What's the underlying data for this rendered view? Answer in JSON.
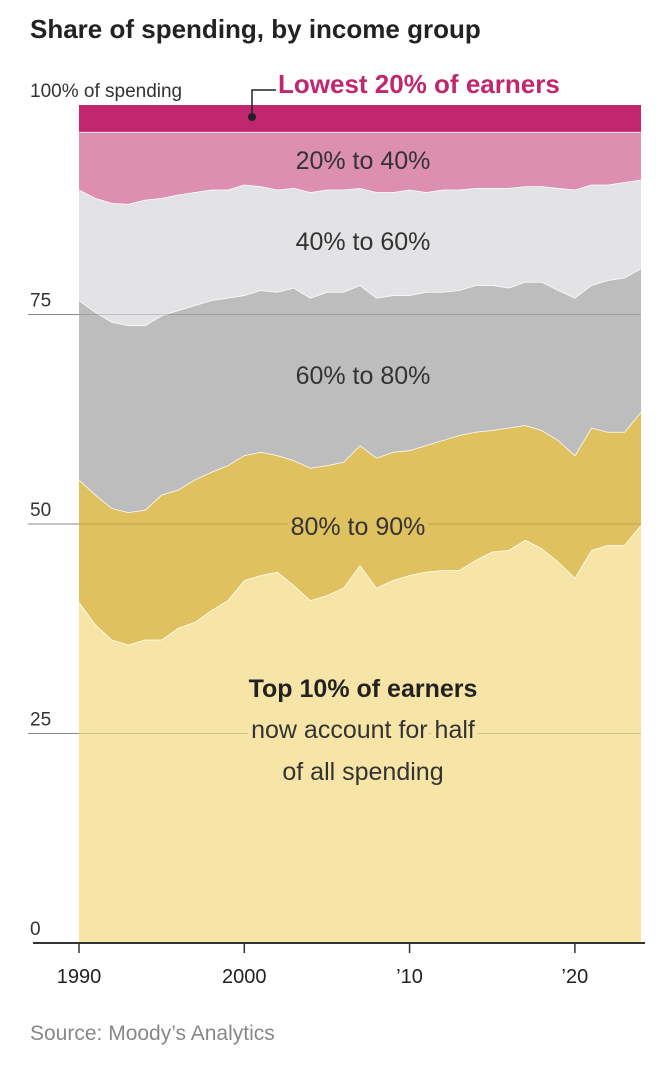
{
  "chart_data": {
    "type": "area",
    "title": "Share of spending, by income group",
    "source": "Source: Moody’s Analytics",
    "annotations": [
      "now account for half",
      "of all spending"
    ],
    "x": [
      1990,
      1991,
      1992,
      1993,
      1994,
      1995,
      1996,
      1997,
      1998,
      1999,
      2000,
      2001,
      2002,
      2003,
      2004,
      2005,
      2006,
      2007,
      2008,
      2009,
      2010,
      2011,
      2012,
      2013,
      2014,
      2015,
      2016,
      2017,
      2018,
      2019,
      2020,
      2021,
      2022,
      2023,
      2024
    ],
    "series": [
      {
        "name": "Top 10% of earners",
        "color": "#f6e5a6",
        "values": [
          40.7,
          38,
          36.2,
          35.6,
          36.2,
          36.2,
          37.6,
          38.3,
          39.7,
          40.9,
          43.3,
          43.9,
          44.3,
          42.7,
          40.9,
          41.5,
          42.4,
          45.1,
          42.4,
          43.3,
          43.9,
          44.3,
          44.5,
          44.5,
          45.7,
          46.7,
          46.9,
          48.1,
          47.1,
          45.5,
          43.6,
          46.9,
          47.5,
          47.5,
          49.9
        ]
      },
      {
        "name": "80% to 90%",
        "color": "#dfc160",
        "values": [
          14.6,
          15.5,
          15.7,
          15.8,
          15.5,
          17.3,
          16.5,
          17,
          16.5,
          16.1,
          14.9,
          14.7,
          13.9,
          14.9,
          15.8,
          15.5,
          15,
          14.3,
          15.5,
          15.3,
          14.9,
          15.1,
          15.5,
          16.1,
          15.3,
          14.5,
          14.6,
          13.7,
          14.1,
          14.5,
          14.6,
          14.6,
          13.5,
          13.5,
          13.5
        ]
      },
      {
        "name": "60% to 80%",
        "color": "#bdbdbd",
        "values": [
          21.4,
          21.8,
          22.2,
          22.3,
          22,
          21.4,
          21.4,
          20.8,
          20.5,
          20,
          19.1,
          19.3,
          19.5,
          20.6,
          20.3,
          20.7,
          20.3,
          19.1,
          19.1,
          18.7,
          18.5,
          18.3,
          17.7,
          17.3,
          17.5,
          17.3,
          16.7,
          17.1,
          17.7,
          17.9,
          18.8,
          17,
          18.1,
          18.4,
          17.1
        ]
      },
      {
        "name": "40% to 60%",
        "color": "#e3e3e5",
        "values": [
          13.2,
          13.6,
          14.2,
          14.5,
          15,
          14,
          13.8,
          13.5,
          13.2,
          12.9,
          13.2,
          12.4,
          12.2,
          11.9,
          12.6,
          12.2,
          12.2,
          11.6,
          12.6,
          12.3,
          12.6,
          11.9,
          12.2,
          12,
          11.6,
          11.6,
          11.9,
          11.4,
          11.4,
          12.2,
          12.9,
          12,
          11.4,
          11.4,
          10.6
        ]
      },
      {
        "name": "20% to 40%",
        "color": "#dc8fb0",
        "values": [
          6.9,
          7.9,
          8.5,
          8.6,
          8.1,
          7.9,
          7.5,
          7.2,
          6.9,
          6.9,
          6.3,
          6.5,
          6.9,
          6.7,
          7.2,
          6.9,
          6.9,
          6.7,
          7.2,
          7.2,
          6.9,
          7.2,
          6.9,
          6.9,
          6.7,
          6.7,
          6.7,
          6.5,
          6.5,
          6.7,
          6.9,
          6.3,
          6.3,
          6,
          5.7
        ]
      },
      {
        "name": "Lowest 20% of earners",
        "color": "#c0276f",
        "values": [
          3.2,
          3.2,
          3.2,
          3.2,
          3.2,
          3.2,
          3.2,
          3.2,
          3.2,
          3.2,
          3.2,
          3.2,
          3.2,
          3.2,
          3.2,
          3.2,
          3.2,
          3.2,
          3.2,
          3.2,
          3.2,
          3.2,
          3.2,
          3.2,
          3.2,
          3.2,
          3.2,
          3.2,
          3.2,
          3.2,
          3.2,
          3.2,
          3.2,
          3.2,
          3.2
        ]
      }
    ],
    "xlim": [
      1990,
      2024
    ],
    "xticks": [
      1990,
      2000,
      {
        "value": 2010,
        "label": "’10"
      },
      {
        "value": 2020,
        "label": "’20"
      }
    ],
    "ylim": [
      0,
      100
    ],
    "yticks": [
      0,
      25,
      50,
      75,
      {
        "value": 100,
        "label": "100% of spending"
      }
    ],
    "grid": true
  }
}
